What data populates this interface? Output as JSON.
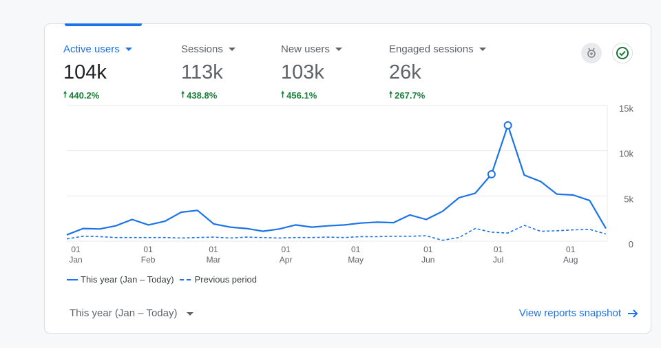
{
  "metrics": [
    {
      "label": "Active users",
      "value": "104k",
      "change": "440.2%"
    },
    {
      "label": "Sessions",
      "value": "113k",
      "change": "438.8%"
    },
    {
      "label": "New users",
      "value": "103k",
      "change": "456.1%"
    },
    {
      "label": "Engaged sessions",
      "value": "26k",
      "change": "267.7%"
    }
  ],
  "icons": {
    "insights": "insights-badge-icon",
    "status": "check-circle-icon"
  },
  "colors": {
    "accent": "#1a73e8",
    "positive": "#188038",
    "grid": "#e8eaed"
  },
  "legend": {
    "current": "This year (Jan – Today)",
    "previous": "Previous period"
  },
  "footer": {
    "date_range": "This year (Jan – Today)",
    "snapshot_link": "View reports snapshot"
  },
  "chart_data": {
    "type": "line",
    "y_ticks": [
      "15k",
      "10k",
      "5k",
      "0"
    ],
    "ylim": [
      0,
      15000
    ],
    "x_ticks": [
      {
        "day": "01",
        "month": "Jan",
        "week": 0
      },
      {
        "day": "01",
        "month": "Feb",
        "week": 4.43
      },
      {
        "day": "01",
        "month": "Mar",
        "week": 8.43
      },
      {
        "day": "01",
        "month": "Apr",
        "week": 12.86
      },
      {
        "day": "01",
        "month": "May",
        "week": 17.14
      },
      {
        "day": "01",
        "month": "Jun",
        "week": 21.57
      },
      {
        "day": "01",
        "month": "Jul",
        "week": 25.86
      },
      {
        "day": "01",
        "month": "Aug",
        "week": 30.29
      }
    ],
    "series": [
      {
        "name": "This year (Jan – Today)",
        "style": "solid",
        "values": [
          700,
          1400,
          1350,
          1700,
          2400,
          1800,
          2200,
          3200,
          3400,
          1900,
          1550,
          1400,
          1100,
          1350,
          1800,
          1550,
          1700,
          1800,
          2000,
          2100,
          2050,
          2900,
          2400,
          3300,
          4800,
          5300,
          7400,
          12800,
          7300,
          6600,
          5200,
          5100,
          4500,
          1400
        ],
        "highlighted_points": [
          26,
          27
        ]
      },
      {
        "name": "Previous period",
        "style": "dashed",
        "values": [
          250,
          550,
          500,
          400,
          400,
          400,
          400,
          350,
          400,
          450,
          350,
          450,
          400,
          350,
          400,
          400,
          450,
          400,
          500,
          500,
          550,
          550,
          600,
          100,
          400,
          1400,
          1000,
          900,
          1750,
          1100,
          1150,
          1250,
          1300,
          800
        ]
      }
    ]
  }
}
